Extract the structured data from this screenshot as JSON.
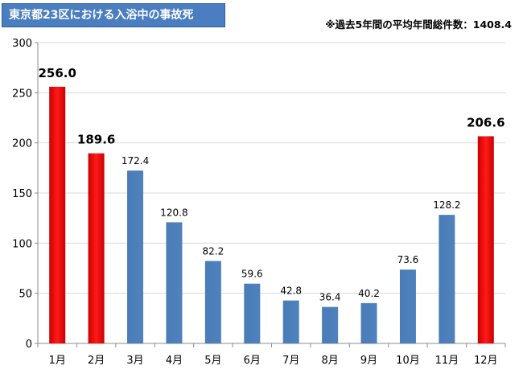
{
  "title": "東京都23区における入浴中の事故死",
  "note": "※過去5年間の平均年間総件数：1408.4",
  "colors": {
    "title_bg": "#4a7ec0",
    "bar_normal": "#4f81bd",
    "bar_highlight": "#ff0000",
    "grid": "#d9d9d9"
  },
  "chart_data": {
    "type": "bar",
    "categories": [
      "1月",
      "2月",
      "3月",
      "4月",
      "5月",
      "6月",
      "7月",
      "8月",
      "9月",
      "10月",
      "11月",
      "12月"
    ],
    "values": [
      256.0,
      189.6,
      172.4,
      120.8,
      82.2,
      59.6,
      42.8,
      36.4,
      40.2,
      73.6,
      128.2,
      206.6
    ],
    "highlighted": [
      true,
      true,
      false,
      false,
      false,
      false,
      false,
      false,
      false,
      false,
      false,
      true
    ],
    "ylim": [
      0,
      300
    ],
    "yticks": [
      0,
      50,
      100,
      150,
      200,
      250,
      300
    ],
    "grid": true,
    "xlabel": "",
    "ylabel": ""
  }
}
